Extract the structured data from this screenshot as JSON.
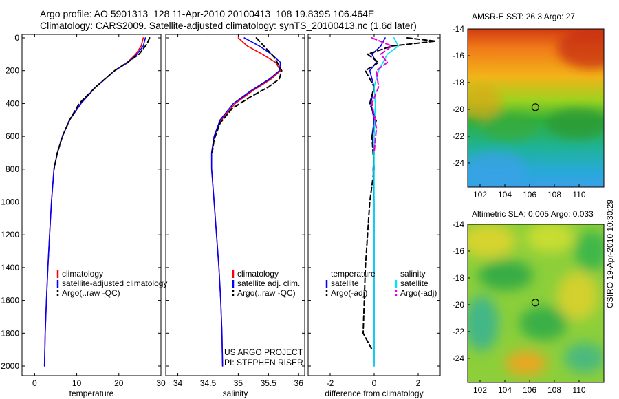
{
  "titles": {
    "line1": "Argo profile: AO 5901313_128 11-Apr-2010 20100413_108 19.839S 106.464E",
    "line2": "Climatology: CARS2009. Satellite-adjusted climatology: synTS_20100413.nc (1.6d later)"
  },
  "credit": {
    "line1": "US ARGO PROJECT",
    "line2": "PI: STEPHEN RISER"
  },
  "stamp": "CSIRO 19-Apr-2010 10:30:29",
  "colors": {
    "climatology": "#ff0000",
    "satellite": "#0000ff",
    "argo": "#000000",
    "salinity_satellite": "#00e5ee",
    "salinity_argo": "#e000e0"
  },
  "chart_data": [
    {
      "type": "line",
      "panel": "temperature",
      "xlabel": "temperature",
      "ylabel": "",
      "xlim": [
        -3,
        30
      ],
      "ylim": [
        2050,
        0
      ],
      "xticks": [
        0,
        10,
        20,
        30
      ],
      "yticks": [
        0,
        200,
        400,
        600,
        800,
        1000,
        1200,
        1400,
        1600,
        1800,
        2000
      ],
      "y_inverted": true,
      "legend": [
        "climatology",
        "satellite-adjusted climatology",
        "Argo(..raw -QC)"
      ],
      "series": [
        {
          "name": "climatology",
          "style": "solid",
          "color_key": "climatology",
          "x": [
            25.8,
            25.3,
            24.0,
            22.0,
            19.0,
            14.5,
            11.0,
            8.3,
            6.6,
            5.4,
            4.6,
            4.0,
            3.55,
            3.15,
            2.8,
            2.5,
            2.35
          ],
          "y": [
            0,
            50,
            100,
            150,
            200,
            300,
            400,
            500,
            600,
            700,
            800,
            1000,
            1200,
            1400,
            1600,
            1800,
            2000
          ]
        },
        {
          "name": "satellite-adjusted climatology",
          "style": "solid",
          "color_key": "satellite",
          "x": [
            26.3,
            25.8,
            24.3,
            22.2,
            19.0,
            14.5,
            11.0,
            8.3,
            6.6,
            5.4,
            4.6,
            4.0,
            3.55,
            3.15,
            2.8,
            2.5,
            2.35
          ],
          "y": [
            0,
            50,
            100,
            150,
            200,
            300,
            400,
            500,
            600,
            700,
            800,
            1000,
            1200,
            1400,
            1600,
            1800,
            2000
          ]
        },
        {
          "name": "Argo(..raw -QC)",
          "style": "dashed",
          "color_key": "argo",
          "x": [
            27.3,
            26.8,
            26.3,
            24.8,
            22.0,
            19.0,
            14.5,
            10.6,
            8.3,
            6.6,
            5.4,
            4.6
          ],
          "y": [
            0,
            30,
            50,
            100,
            150,
            200,
            300,
            400,
            500,
            600,
            700,
            800
          ]
        }
      ]
    },
    {
      "type": "line",
      "panel": "salinity",
      "xlabel": "salinity",
      "ylabel": "",
      "xlim": [
        33.8,
        36.1
      ],
      "ylim": [
        2050,
        0
      ],
      "xticks": [
        34,
        34.5,
        35,
        35.5,
        36
      ],
      "yticks": [
        0,
        200,
        400,
        600,
        800,
        1000,
        1200,
        1400,
        1600,
        1800,
        2000
      ],
      "y_inverted": true,
      "legend": [
        "climatology",
        "satellite adj. clim.",
        "Argo(..raw -QC)"
      ],
      "series": [
        {
          "name": "climatology",
          "style": "solid",
          "color_key": "climatology",
          "x": [
            35.0,
            35.15,
            35.4,
            35.62,
            35.7,
            35.55,
            35.25,
            34.95,
            34.72,
            34.6,
            34.56,
            34.56,
            34.6,
            34.64,
            34.68,
            34.71,
            34.73,
            34.74
          ],
          "y": [
            0,
            50,
            100,
            150,
            200,
            250,
            320,
            400,
            500,
            600,
            700,
            800,
            1000,
            1200,
            1400,
            1600,
            1800,
            2000
          ]
        },
        {
          "name": "satellite adj. clim.",
          "style": "solid",
          "color_key": "satellite",
          "x": [
            35.1,
            35.35,
            35.55,
            35.7,
            35.68,
            35.52,
            35.22,
            34.92,
            34.7,
            34.6,
            34.56,
            34.56,
            34.6,
            34.64,
            34.68,
            34.71,
            34.73,
            34.74
          ],
          "y": [
            0,
            50,
            100,
            150,
            200,
            250,
            320,
            400,
            500,
            600,
            700,
            800,
            1000,
            1200,
            1400,
            1600,
            1800,
            2000
          ]
        },
        {
          "name": "Argo(..raw -QC)",
          "style": "dashed",
          "color_key": "argo",
          "x": [
            35.3,
            35.45,
            35.6,
            35.72,
            35.68,
            35.5,
            35.2,
            34.9,
            34.7,
            34.6,
            34.57
          ],
          "y": [
            0,
            60,
            120,
            200,
            250,
            300,
            360,
            430,
            520,
            620,
            700
          ]
        }
      ]
    },
    {
      "type": "line",
      "panel": "difference",
      "xlabel": "difference from climatology",
      "ylabel": "",
      "xlim": [
        -3,
        3
      ],
      "ylim": [
        2050,
        0
      ],
      "xticks": [
        -2,
        0,
        2
      ],
      "yticks": [
        0,
        200,
        400,
        600,
        800,
        1000,
        1200,
        1400,
        1600,
        1800,
        2000
      ],
      "y_inverted": true,
      "legend": [
        "temperature",
        "satellite",
        "Argo(-adj)",
        "salinity",
        "satellite",
        "Argo(-adj)"
      ],
      "series": [
        {
          "name": "temperature satellite",
          "style": "solid",
          "color_key": "satellite",
          "x": [
            0.5,
            0.3,
            -0.1,
            0.1,
            -0.2,
            0.0,
            -0.15,
            0.0,
            -0.1,
            0.0,
            -0.05,
            0.0,
            0.0,
            0.0
          ],
          "y": [
            0,
            50,
            100,
            150,
            200,
            300,
            400,
            500,
            600,
            700,
            800,
            1000,
            1500,
            2000
          ]
        },
        {
          "name": "temperature Argo(-adj)",
          "style": "dashed",
          "color_key": "argo",
          "x": [
            1.5,
            2.8,
            0.8,
            -0.3,
            0.2,
            -0.4,
            0.0,
            -0.2,
            0.1,
            -0.1,
            0.0,
            -0.2,
            -0.4,
            -0.5,
            -0.1
          ],
          "y": [
            0,
            20,
            50,
            100,
            150,
            200,
            300,
            400,
            500,
            600,
            800,
            1000,
            1400,
            1800,
            1900
          ]
        },
        {
          "name": "salinity satellite",
          "style": "solid",
          "color_key": "salinity_satellite",
          "x": [
            0.9,
            1.1,
            0.6,
            0.4,
            0.2,
            0.0,
            0.05,
            0.0,
            0.0,
            0.0
          ],
          "y": [
            0,
            50,
            100,
            150,
            200,
            300,
            400,
            600,
            1000,
            2000
          ]
        },
        {
          "name": "salinity Argo(-adj)",
          "style": "dashed",
          "color_key": "salinity_argo",
          "x": [
            -0.1,
            0.8,
            0.3,
            0.6,
            0.1,
            0.2,
            -0.1,
            0.1,
            0.0
          ],
          "y": [
            0,
            50,
            100,
            150,
            200,
            300,
            400,
            550,
            700
          ]
        }
      ]
    },
    {
      "type": "heatmap",
      "panel": "sst map",
      "title": "AMSR-E SST: 26.3 Argo: 27",
      "xlim": [
        101,
        112
      ],
      "ylim": [
        -25.8,
        -14
      ],
      "xticks": [
        102,
        104,
        106,
        108,
        110
      ],
      "yticks": [
        -14,
        -16,
        -18,
        -20,
        -22,
        -24
      ],
      "marker": {
        "x": 106.464,
        "y": -19.839
      }
    },
    {
      "type": "heatmap",
      "panel": "sla map",
      "title": "Altimetric SLA: 0.005 Argo: 0.033",
      "xlim": [
        101,
        112
      ],
      "ylim": [
        -25.8,
        -14
      ],
      "xticks": [
        102,
        104,
        106,
        108,
        110
      ],
      "yticks": [
        -14,
        -16,
        -18,
        -20,
        -22,
        -24
      ],
      "marker": {
        "x": 106.464,
        "y": -19.839
      }
    }
  ]
}
